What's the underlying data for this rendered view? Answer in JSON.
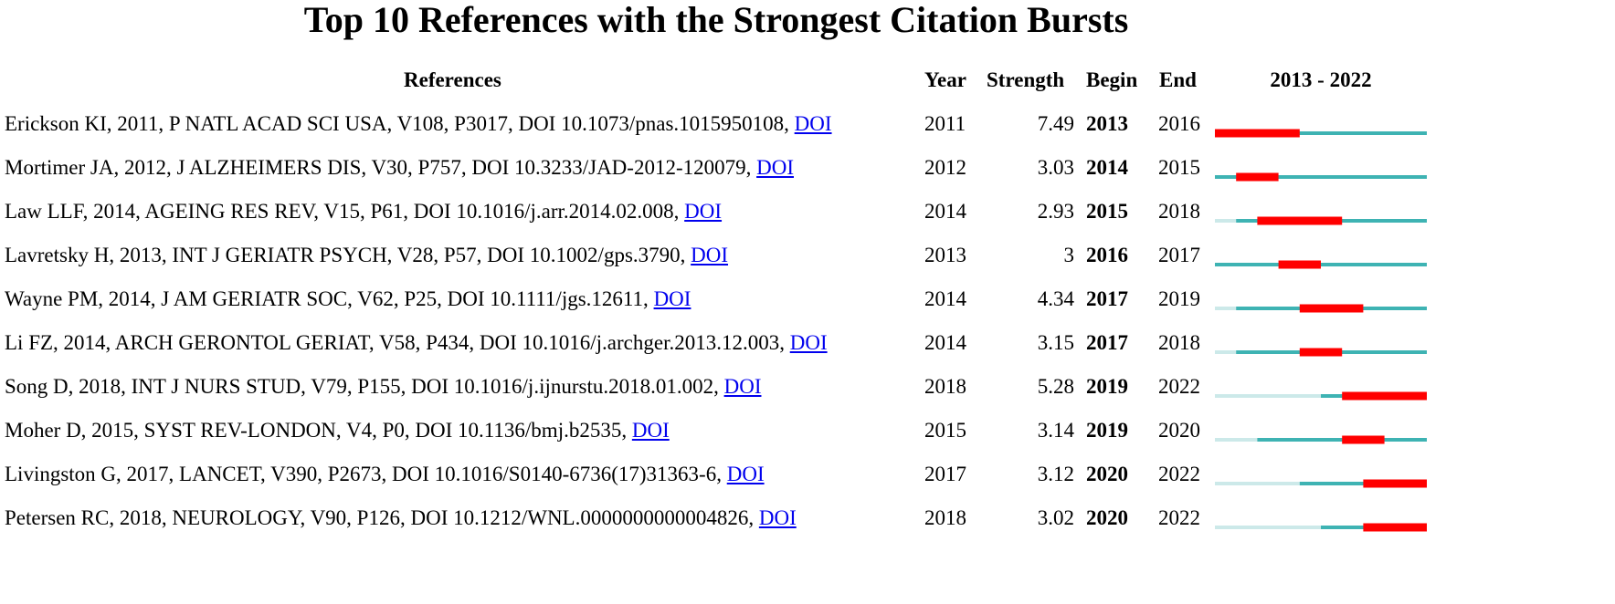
{
  "title": "Top 10 References with the Strongest Citation Bursts",
  "headers": {
    "references": "References",
    "year": "Year",
    "strength": "Strength",
    "begin": "Begin",
    "end": "End",
    "timeline": "2013 - 2022"
  },
  "rows": [
    {
      "reference": "Erickson KI, 2011, P NATL ACAD SCI USA, V108, P3017, DOI 10.1073/pnas.1015950108,",
      "link": "DOI",
      "year": 2011,
      "strength": 7.49,
      "begin": 2013,
      "end": 2016
    },
    {
      "reference": "Mortimer JA, 2012, J ALZHEIMERS DIS, V30, P757, DOI 10.3233/JAD-2012-120079,",
      "link": "DOI",
      "year": 2012,
      "strength": 3.03,
      "begin": 2014,
      "end": 2015
    },
    {
      "reference": "Law LLF, 2014, AGEING RES REV, V15, P61, DOI 10.1016/j.arr.2014.02.008,",
      "link": "DOI",
      "year": 2014,
      "strength": 2.93,
      "begin": 2015,
      "end": 2018
    },
    {
      "reference": "Lavretsky H, 2013, INT J GERIATR PSYCH, V28, P57, DOI 10.1002/gps.3790,",
      "link": "DOI",
      "year": 2013,
      "strength": 3,
      "begin": 2016,
      "end": 2017
    },
    {
      "reference": "Wayne PM, 2014, J AM GERIATR SOC, V62, P25, DOI 10.1111/jgs.12611,",
      "link": "DOI",
      "year": 2014,
      "strength": 4.34,
      "begin": 2017,
      "end": 2019
    },
    {
      "reference": "Li FZ, 2014, ARCH GERONTOL GERIAT, V58, P434, DOI 10.1016/j.archger.2013.12.003,",
      "link": "DOI",
      "year": 2014,
      "strength": 3.15,
      "begin": 2017,
      "end": 2018
    },
    {
      "reference": "Song D, 2018, INT J NURS STUD, V79, P155, DOI 10.1016/j.ijnurstu.2018.01.002,",
      "link": "DOI",
      "year": 2018,
      "strength": 5.28,
      "begin": 2019,
      "end": 2022
    },
    {
      "reference": "Moher D, 2015, SYST REV-LONDON, V4, P0, DOI 10.1136/bmj.b2535,",
      "link": "DOI",
      "year": 2015,
      "strength": 3.14,
      "begin": 2019,
      "end": 2020
    },
    {
      "reference": "Livingston G, 2017, LANCET, V390, P2673, DOI 10.1016/S0140-6736(17)31363-6,",
      "link": "DOI",
      "year": 2017,
      "strength": 3.12,
      "begin": 2020,
      "end": 2022
    },
    {
      "reference": "Petersen RC, 2018, NEUROLOGY, V90, P126, DOI 10.1212/WNL.0000000000004826,",
      "link": "DOI",
      "year": 2018,
      "strength": 3.02,
      "begin": 2020,
      "end": 2022
    }
  ]
}
